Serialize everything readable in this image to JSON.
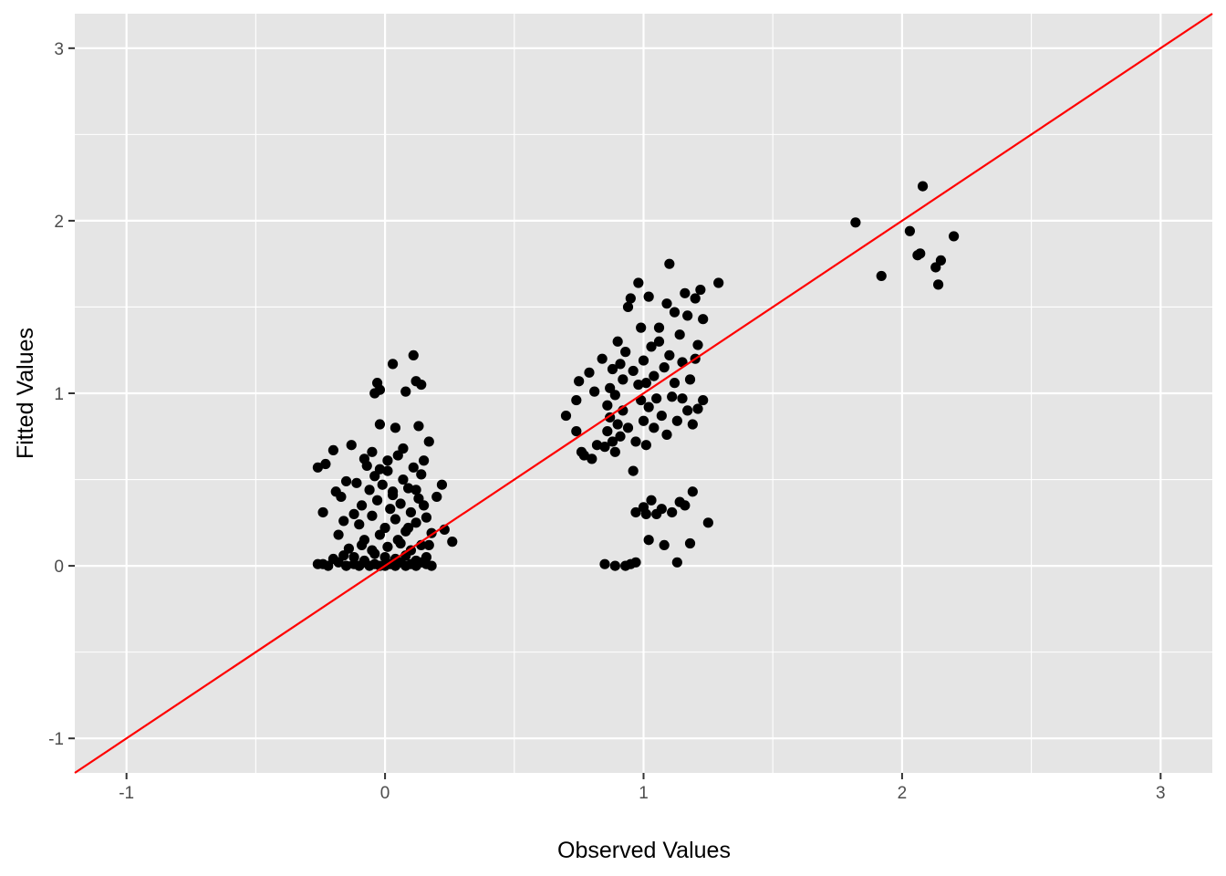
{
  "chart_data": {
    "type": "scatter",
    "xlabel": "Observed Values",
    "ylabel": "Fitted Values",
    "xlim": [
      -1.2,
      3.2
    ],
    "ylim": [
      -1.2,
      3.2
    ],
    "x_ticks": [
      -1,
      0,
      1,
      2,
      3
    ],
    "y_ticks": [
      -1,
      0,
      1,
      2,
      3
    ],
    "x_tick_labels": [
      "-1",
      "0",
      "1",
      "2",
      "3"
    ],
    "y_tick_labels": [
      "-1",
      "0",
      "1",
      "2",
      "3"
    ],
    "grid": true,
    "reference_line": {
      "slope": 1,
      "intercept": 0,
      "color": "#ff0000"
    },
    "colors": {
      "panel": "#e5e5e5",
      "grid": "#ffffff",
      "point": "#000000",
      "line": "#ff0000"
    },
    "series": [
      {
        "points": [
          [
            -0.26,
            0.01
          ],
          [
            -0.24,
            0.01
          ],
          [
            -0.22,
            0.0
          ],
          [
            -0.18,
            0.02
          ],
          [
            -0.15,
            0.0
          ],
          [
            -0.12,
            0.01
          ],
          [
            -0.1,
            0.0
          ],
          [
            -0.08,
            0.02
          ],
          [
            -0.06,
            0.0
          ],
          [
            -0.04,
            0.01
          ],
          [
            -0.02,
            0.0
          ],
          [
            0.0,
            0.0
          ],
          [
            0.02,
            0.01
          ],
          [
            0.04,
            0.0
          ],
          [
            0.06,
            0.02
          ],
          [
            0.08,
            0.0
          ],
          [
            0.1,
            0.01
          ],
          [
            0.12,
            0.0
          ],
          [
            0.14,
            0.02
          ],
          [
            0.16,
            0.01
          ],
          [
            0.18,
            0.0
          ],
          [
            -0.2,
            0.04
          ],
          [
            -0.16,
            0.06
          ],
          [
            -0.12,
            0.05
          ],
          [
            -0.08,
            0.03
          ],
          [
            -0.04,
            0.07
          ],
          [
            0.0,
            0.05
          ],
          [
            0.04,
            0.04
          ],
          [
            0.08,
            0.06
          ],
          [
            0.12,
            0.03
          ],
          [
            0.16,
            0.05
          ],
          [
            -0.14,
            0.1
          ],
          [
            -0.09,
            0.12
          ],
          [
            -0.05,
            0.09
          ],
          [
            0.01,
            0.11
          ],
          [
            0.06,
            0.13
          ],
          [
            0.1,
            0.09
          ],
          [
            0.14,
            0.12
          ],
          [
            -0.26,
            0.57
          ],
          [
            -0.23,
            0.59
          ],
          [
            -0.2,
            0.67
          ],
          [
            -0.24,
            0.31
          ],
          [
            -0.19,
            0.43
          ],
          [
            -0.17,
            0.4
          ],
          [
            -0.18,
            0.18
          ],
          [
            -0.16,
            0.26
          ],
          [
            -0.13,
            0.7
          ],
          [
            -0.11,
            0.48
          ],
          [
            -0.1,
            0.24
          ],
          [
            -0.09,
            0.35
          ],
          [
            -0.08,
            0.62
          ],
          [
            -0.07,
            0.58
          ],
          [
            -0.06,
            0.44
          ],
          [
            -0.05,
            0.29
          ],
          [
            -0.04,
            0.52
          ],
          [
            -0.03,
            0.38
          ],
          [
            -0.02,
            0.18
          ],
          [
            -0.01,
            0.47
          ],
          [
            0.0,
            0.22
          ],
          [
            0.01,
            0.55
          ],
          [
            0.02,
            0.33
          ],
          [
            0.03,
            0.41
          ],
          [
            0.04,
            0.27
          ],
          [
            0.05,
            0.64
          ],
          [
            0.06,
            0.36
          ],
          [
            0.07,
            0.5
          ],
          [
            0.08,
            0.2
          ],
          [
            0.09,
            0.45
          ],
          [
            0.1,
            0.31
          ],
          [
            0.11,
            0.57
          ],
          [
            0.12,
            0.25
          ],
          [
            0.13,
            0.39
          ],
          [
            0.14,
            0.53
          ],
          [
            0.15,
            0.35
          ],
          [
            0.16,
            0.28
          ],
          [
            0.17,
            0.72
          ],
          [
            0.18,
            0.19
          ],
          [
            -0.04,
            1.0
          ],
          [
            -0.02,
            1.02
          ],
          [
            -0.03,
            1.06
          ],
          [
            0.03,
            1.17
          ],
          [
            0.08,
            1.01
          ],
          [
            0.11,
            1.22
          ],
          [
            0.12,
            1.07
          ],
          [
            0.14,
            1.05
          ],
          [
            -0.02,
            0.82
          ],
          [
            0.04,
            0.8
          ],
          [
            0.13,
            0.81
          ],
          [
            0.22,
            0.47
          ],
          [
            0.2,
            0.4
          ],
          [
            0.23,
            0.21
          ],
          [
            0.26,
            0.14
          ],
          [
            -0.15,
            0.49
          ],
          [
            -0.12,
            0.3
          ],
          [
            -0.08,
            0.15
          ],
          [
            -0.05,
            0.66
          ],
          [
            -0.02,
            0.56
          ],
          [
            0.01,
            0.61
          ],
          [
            0.03,
            0.43
          ],
          [
            0.05,
            0.15
          ],
          [
            0.07,
            0.68
          ],
          [
            0.09,
            0.22
          ],
          [
            0.12,
            0.44
          ],
          [
            0.15,
            0.61
          ],
          [
            0.17,
            0.12
          ],
          [
            0.7,
            0.87
          ],
          [
            0.74,
            0.96
          ],
          [
            0.74,
            0.78
          ],
          [
            0.75,
            1.07
          ],
          [
            0.76,
            0.66
          ],
          [
            0.77,
            0.64
          ],
          [
            0.79,
            1.12
          ],
          [
            0.8,
            0.62
          ],
          [
            0.81,
            1.01
          ],
          [
            0.82,
            0.7
          ],
          [
            0.84,
            1.2
          ],
          [
            0.85,
            0.69
          ],
          [
            0.85,
            0.01
          ],
          [
            0.86,
            0.93
          ],
          [
            0.86,
            0.78
          ],
          [
            0.87,
            0.86
          ],
          [
            0.87,
            1.03
          ],
          [
            0.88,
            0.72
          ],
          [
            0.88,
            1.14
          ],
          [
            0.89,
            0.99
          ],
          [
            0.89,
            0.66
          ],
          [
            0.89,
            0.0
          ],
          [
            0.9,
            1.3
          ],
          [
            0.9,
            0.82
          ],
          [
            0.91,
            1.17
          ],
          [
            0.91,
            0.75
          ],
          [
            0.92,
            1.08
          ],
          [
            0.92,
            0.9
          ],
          [
            0.93,
            0.0
          ],
          [
            0.93,
            1.24
          ],
          [
            0.94,
            0.8
          ],
          [
            0.94,
            1.5
          ],
          [
            0.95,
            1.55
          ],
          [
            0.95,
            0.01
          ],
          [
            0.96,
            0.55
          ],
          [
            0.96,
            1.13
          ],
          [
            0.97,
            0.31
          ],
          [
            0.97,
            0.72
          ],
          [
            0.97,
            0.02
          ],
          [
            0.98,
            1.64
          ],
          [
            0.98,
            1.05
          ],
          [
            0.99,
            0.96
          ],
          [
            0.99,
            1.38
          ],
          [
            1.0,
            0.34
          ],
          [
            1.0,
            0.84
          ],
          [
            1.0,
            1.19
          ],
          [
            1.01,
            0.3
          ],
          [
            1.01,
            0.7
          ],
          [
            1.01,
            1.06
          ],
          [
            1.02,
            0.15
          ],
          [
            1.02,
            1.56
          ],
          [
            1.02,
            0.92
          ],
          [
            1.03,
            0.38
          ],
          [
            1.03,
            1.27
          ],
          [
            1.04,
            0.8
          ],
          [
            1.04,
            1.1
          ],
          [
            1.05,
            0.3
          ],
          [
            1.05,
            0.97
          ],
          [
            1.06,
            1.3
          ],
          [
            1.06,
            1.38
          ],
          [
            1.07,
            0.33
          ],
          [
            1.07,
            0.87
          ],
          [
            1.08,
            0.12
          ],
          [
            1.08,
            1.15
          ],
          [
            1.09,
            1.52
          ],
          [
            1.09,
            0.76
          ],
          [
            1.1,
            1.75
          ],
          [
            1.1,
            1.22
          ],
          [
            1.11,
            0.31
          ],
          [
            1.11,
            0.98
          ],
          [
            1.12,
            1.06
          ],
          [
            1.12,
            1.47
          ],
          [
            1.13,
            0.84
          ],
          [
            1.13,
            0.02
          ],
          [
            1.14,
            1.34
          ],
          [
            1.14,
            0.37
          ],
          [
            1.15,
            0.97
          ],
          [
            1.15,
            1.18
          ],
          [
            1.16,
            1.58
          ],
          [
            1.16,
            0.35
          ],
          [
            1.17,
            0.9
          ],
          [
            1.17,
            1.45
          ],
          [
            1.18,
            1.08
          ],
          [
            1.18,
            0.13
          ],
          [
            1.19,
            0.43
          ],
          [
            1.19,
            0.82
          ],
          [
            1.2,
            1.2
          ],
          [
            1.2,
            1.55
          ],
          [
            1.21,
            0.91
          ],
          [
            1.21,
            1.28
          ],
          [
            1.22,
            1.6
          ],
          [
            1.23,
            0.96
          ],
          [
            1.23,
            1.43
          ],
          [
            1.25,
            0.25
          ],
          [
            1.29,
            1.64
          ],
          [
            1.82,
            1.99
          ],
          [
            1.92,
            1.68
          ],
          [
            2.03,
            1.94
          ],
          [
            2.06,
            1.8
          ],
          [
            2.07,
            1.81
          ],
          [
            2.08,
            2.2
          ],
          [
            2.13,
            1.73
          ],
          [
            2.14,
            1.63
          ],
          [
            2.15,
            1.77
          ],
          [
            2.2,
            1.91
          ]
        ]
      }
    ]
  }
}
